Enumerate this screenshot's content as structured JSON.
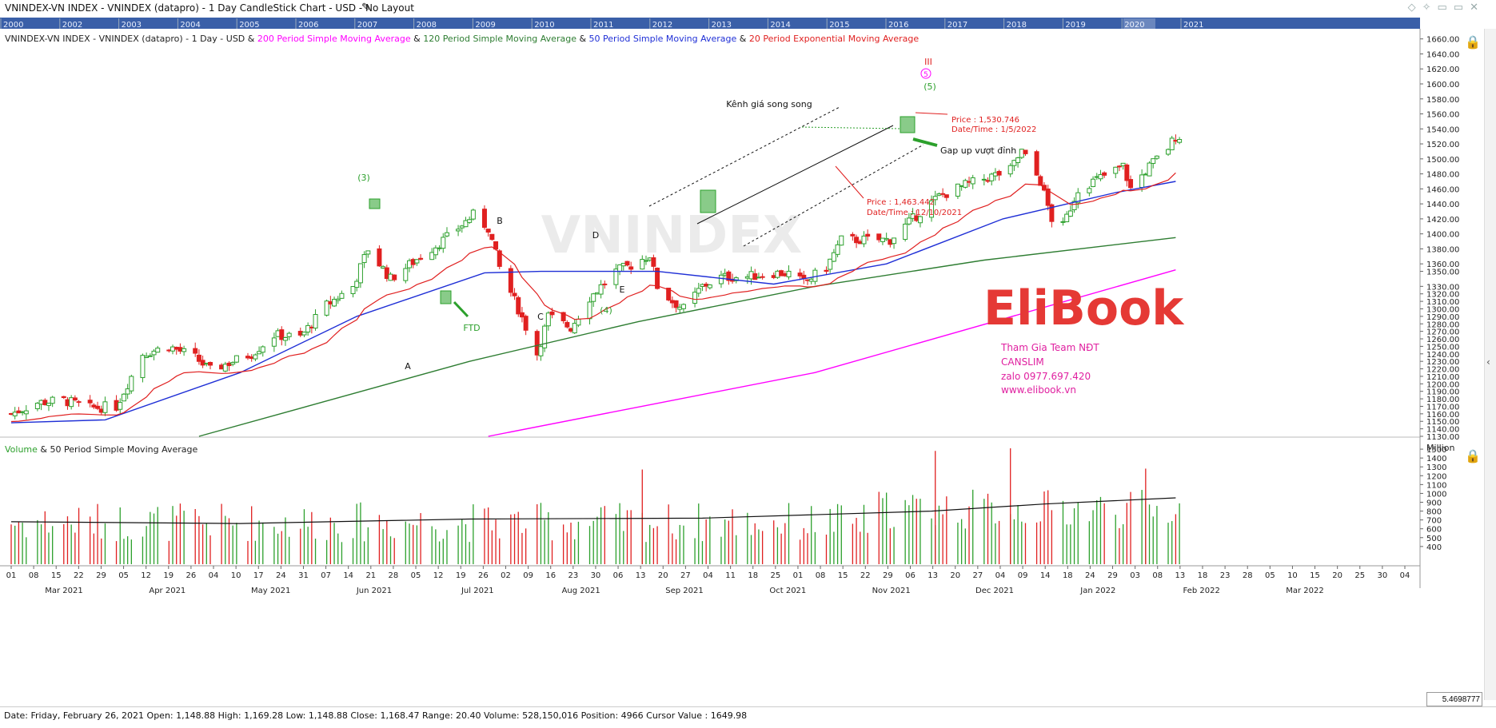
{
  "window": {
    "title": "VNINDEX-VN INDEX - VNINDEX (datapro) - 1 Day CandleStick Chart - USD - No Layout"
  },
  "overview_years": [
    "2000",
    "2002",
    "2003",
    "2004",
    "2005",
    "2006",
    "2007",
    "2008",
    "2009",
    "2010",
    "2011",
    "2012",
    "2013",
    "2014",
    "2015",
    "2016",
    "2017",
    "2018",
    "2019",
    "2020",
    "2021"
  ],
  "legend": {
    "prefix": "VNINDEX-VN INDEX - VNINDEX (datapro) - 1 Day - USD & ",
    "ma200": "200 Period Simple Moving Average",
    "amp1": " & ",
    "ma120": "120 Period Simple Moving Average",
    "amp2": " & ",
    "ma50": "50 Period Simple Moving Average",
    "amp3": " & ",
    "ema20": "20 Period Exponential Moving Average"
  },
  "volume_legend": {
    "volume": "Volume",
    "rest": " & 50 Period Simple Moving Average"
  },
  "watermark": "VNINDEX",
  "annotations": {
    "wave3": "(3)",
    "wave4": "(4)",
    "wave5": "(5)",
    "wave5_circle": "5",
    "wave_III": "III",
    "A": "A",
    "B": "B",
    "C": "C",
    "D": "D",
    "E": "E",
    "ftd": "FTD",
    "channel": "Kênh giá song song",
    "gap": "Gap up vượt đỉnh",
    "price1": "Price : 1,530.746",
    "date1": "Date/Time : 1/5/2022",
    "price2": "Price : 1,463.442",
    "date2": "Date/Time : 12/10/2021"
  },
  "brand": {
    "logo": "EliBook",
    "line1": "Tham Gia Team NĐT",
    "line2": "CANSLIM",
    "line3": "zalo 0977.697.420",
    "line4": "www.elibook.vn"
  },
  "status": "Date: Friday, February 26, 2021 Open: 1,148.88 High: 1,169.28 Low: 1,148.88 Close: 1,168.47 Range: 20.40 Volume: 528,150,016 Position: 4966 Cursor Value : 1649.98",
  "xy_value": "5.4698777",
  "volume_unit": "Million",
  "x_day_ticks": [
    "01",
    "08",
    "15",
    "22",
    "29",
    "05",
    "12",
    "19",
    "26",
    "04",
    "10",
    "17",
    "24",
    "31",
    "07",
    "14",
    "21",
    "28",
    "05",
    "12",
    "19",
    "26",
    "02",
    "09",
    "16",
    "23",
    "30",
    "06",
    "13",
    "20",
    "27",
    "04",
    "11",
    "18",
    "25",
    "01",
    "08",
    "15",
    "22",
    "29",
    "06",
    "13",
    "20",
    "27",
    "04",
    "09",
    "14",
    "18",
    "24",
    "29",
    "03",
    "08",
    "13",
    "18",
    "23",
    "28",
    "05",
    "10",
    "15",
    "20",
    "25",
    "30",
    "04"
  ],
  "x_month_ticks": [
    "Mar 2021",
    "Apr 2021",
    "May 2021",
    "Jun 2021",
    "Jul 2021",
    "Aug 2021",
    "Sep 2021",
    "Oct 2021",
    "Nov 2021",
    "Dec 2021",
    "Jan 2022",
    "Feb 2022",
    "Mar 2022"
  ],
  "colors": {
    "up": "#2ca02c",
    "down": "#e02020",
    "ma200": "#ff00ff",
    "ma120": "#2e7d32",
    "ma50": "#1f2fd6",
    "ema20": "#e02020",
    "brand_red": "#e53935",
    "brand_blue": "#1e3c8c",
    "brand_pink": "#e020a0"
  },
  "chart_data": [
    {
      "type": "candlestick",
      "title": "VNINDEX-VN INDEX - VNINDEX (datapro) - 1 Day CandleStick Chart - USD",
      "y_ticks": [
        1130,
        1140,
        1150,
        1160,
        1170,
        1180,
        1190,
        1200,
        1210,
        1220,
        1230,
        1240,
        1250,
        1260,
        1270,
        1280,
        1290,
        1300,
        1310,
        1320,
        1330,
        1350,
        1360,
        1380,
        1400,
        1420,
        1440,
        1460,
        1480,
        1500,
        1520,
        1540,
        1560,
        1580,
        1600,
        1620,
        1640,
        1660
      ],
      "ylim": [
        1130,
        1665
      ],
      "x_range": [
        "2021-03-01",
        "2022-03-07"
      ],
      "anchors": [
        [
          "2021-03-01",
          1160
        ],
        [
          "2021-03-08",
          1175
        ],
        [
          "2021-03-15",
          1178
        ],
        [
          "2021-03-22",
          1168
        ],
        [
          "2021-03-29",
          1170
        ],
        [
          "2021-04-05",
          1240
        ],
        [
          "2021-04-12",
          1250
        ],
        [
          "2021-04-19",
          1235
        ],
        [
          "2021-04-23",
          1218
        ],
        [
          "2021-05-04",
          1240
        ],
        [
          "2021-05-10",
          1265
        ],
        [
          "2021-05-17",
          1262
        ],
        [
          "2021-05-24",
          1305
        ],
        [
          "2021-05-31",
          1330
        ],
        [
          "2021-06-04",
          1380
        ],
        [
          "2021-06-10",
          1340
        ],
        [
          "2021-06-18",
          1370
        ],
        [
          "2021-06-25",
          1395
        ],
        [
          "2021-07-02",
          1425
        ],
        [
          "2021-07-06",
          1408
        ],
        [
          "2021-07-09",
          1355
        ],
        [
          "2021-07-14",
          1300
        ],
        [
          "2021-07-19",
          1240
        ],
        [
          "2021-07-22",
          1290
        ],
        [
          "2021-07-28",
          1275
        ],
        [
          "2021-08-02",
          1315
        ],
        [
          "2021-08-09",
          1350
        ],
        [
          "2021-08-13",
          1358
        ],
        [
          "2021-08-18",
          1372
        ],
        [
          "2021-08-20",
          1330
        ],
        [
          "2021-08-24",
          1310
        ],
        [
          "2021-08-27",
          1300
        ],
        [
          "2021-09-01",
          1330
        ],
        [
          "2021-09-06",
          1342
        ],
        [
          "2021-09-13",
          1343
        ],
        [
          "2021-09-20",
          1348
        ],
        [
          "2021-09-24",
          1347
        ],
        [
          "2021-09-28",
          1335
        ],
        [
          "2021-10-04",
          1355
        ],
        [
          "2021-10-08",
          1392
        ],
        [
          "2021-10-15",
          1392
        ],
        [
          "2021-10-21",
          1392
        ],
        [
          "2021-10-27",
          1420
        ],
        [
          "2021-11-03",
          1450
        ],
        [
          "2021-11-10",
          1465
        ],
        [
          "2021-11-16",
          1475
        ],
        [
          "2021-11-22",
          1485
        ],
        [
          "2021-11-25",
          1510
        ],
        [
          "2021-11-30",
          1470
        ],
        [
          "2021-12-03",
          1420
        ],
        [
          "2021-12-06",
          1410
        ],
        [
          "2021-12-10",
          1460
        ],
        [
          "2021-12-16",
          1475
        ],
        [
          "2021-12-22",
          1490
        ],
        [
          "2021-12-24",
          1460
        ],
        [
          "2021-12-29",
          1490
        ],
        [
          "2022-01-03",
          1515
        ],
        [
          "2022-01-05",
          1530
        ]
      ],
      "moving_averages": {
        "ma200_points": [
          [
            "2021-07-06",
            1130
          ],
          [
            "2021-10-01",
            1215
          ],
          [
            "2022-01-05",
            1352
          ]
        ],
        "ma120_points": [
          [
            "2021-04-20",
            1130
          ],
          [
            "2021-07-01",
            1230
          ],
          [
            "2021-08-15",
            1283
          ],
          [
            "2021-10-01",
            1330
          ],
          [
            "2021-11-15",
            1365
          ],
          [
            "2022-01-05",
            1395
          ]
        ],
        "ma50_points": [
          [
            "2021-03-01",
            1148
          ],
          [
            "2021-03-26",
            1152
          ],
          [
            "2021-05-01",
            1215
          ],
          [
            "2021-06-01",
            1290
          ],
          [
            "2021-07-05",
            1348
          ],
          [
            "2021-07-20",
            1350
          ],
          [
            "2021-08-20",
            1350
          ],
          [
            "2021-09-20",
            1333
          ],
          [
            "2021-10-20",
            1360
          ],
          [
            "2021-11-20",
            1420
          ],
          [
            "2021-12-20",
            1455
          ],
          [
            "2022-01-05",
            1470
          ]
        ]
      },
      "annotation_values": [
        {
          "label": "Price : 1,530.746",
          "date": "2022-01-05",
          "price": 1530.746
        },
        {
          "label": "Price : 1,463.442",
          "date": "2021-12-10",
          "price": 1463.442
        }
      ]
    },
    {
      "type": "bar",
      "title": "Volume & 50 Period Simple Moving Average",
      "unit": "Million",
      "y_ticks": [
        400,
        500,
        600,
        700,
        800,
        900,
        1000,
        1100,
        1200,
        1300,
        1400,
        1500
      ],
      "ylim": [
        200,
        1600
      ],
      "volume_ma_points": [
        [
          "2021-03-01",
          680
        ],
        [
          "2021-05-01",
          660
        ],
        [
          "2021-07-01",
          710
        ],
        [
          "2021-09-01",
          720
        ],
        [
          "2021-11-01",
          800
        ],
        [
          "2021-12-01",
          880
        ],
        [
          "2022-01-05",
          950
        ]
      ],
      "notable_peaks": [
        [
          "2021-11-02",
          1480
        ],
        [
          "2021-11-22",
          1510
        ],
        [
          "2021-08-16",
          1270
        ],
        [
          "2021-12-28",
          1280
        ]
      ]
    }
  ]
}
